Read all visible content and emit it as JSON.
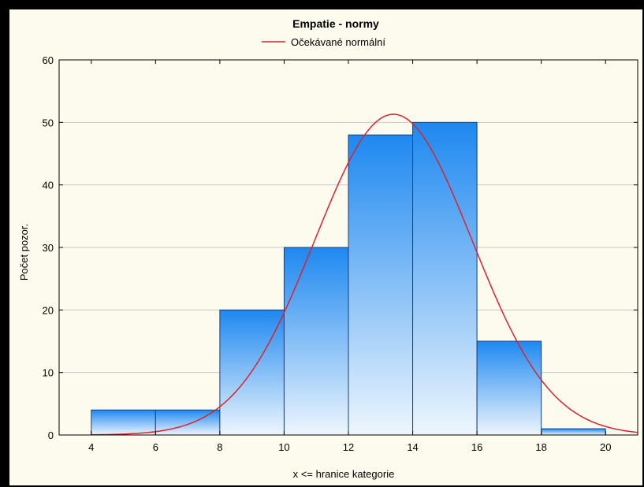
{
  "chart_data": {
    "type": "bar",
    "title": "Empatie - normy",
    "xlabel": "x <= hranice kategorie",
    "ylabel": "Počet pozor.",
    "xlim": [
      3,
      21
    ],
    "ylim": [
      0,
      60
    ],
    "x_ticks": [
      4,
      6,
      8,
      10,
      12,
      14,
      16,
      18,
      20
    ],
    "y_ticks": [
      0,
      10,
      20,
      30,
      40,
      50,
      60
    ],
    "bins": [
      {
        "from": 4,
        "to": 6,
        "count": 4
      },
      {
        "from": 6,
        "to": 8,
        "count": 4
      },
      {
        "from": 8,
        "to": 10,
        "count": 20
      },
      {
        "from": 10,
        "to": 12,
        "count": 30
      },
      {
        "from": 12,
        "to": 14,
        "count": 48
      },
      {
        "from": 14,
        "to": 16,
        "count": 50
      },
      {
        "from": 16,
        "to": 18,
        "count": 15
      },
      {
        "from": 18,
        "to": 20,
        "count": 1
      }
    ],
    "normal_curve": {
      "name": "Očekávané normální",
      "mean": 13.4,
      "sd": 2.45,
      "peak": 51.3,
      "color": "#d9232e"
    },
    "grid": true,
    "legend_position": "top-center",
    "colors": {
      "bar_top": "#1e88f0",
      "bar_bottom": "#eef6fd",
      "bar_stroke": "#1a3f7a",
      "background": "#fcfbee",
      "frame": "#000000",
      "grid": "#c8c8c8"
    }
  }
}
